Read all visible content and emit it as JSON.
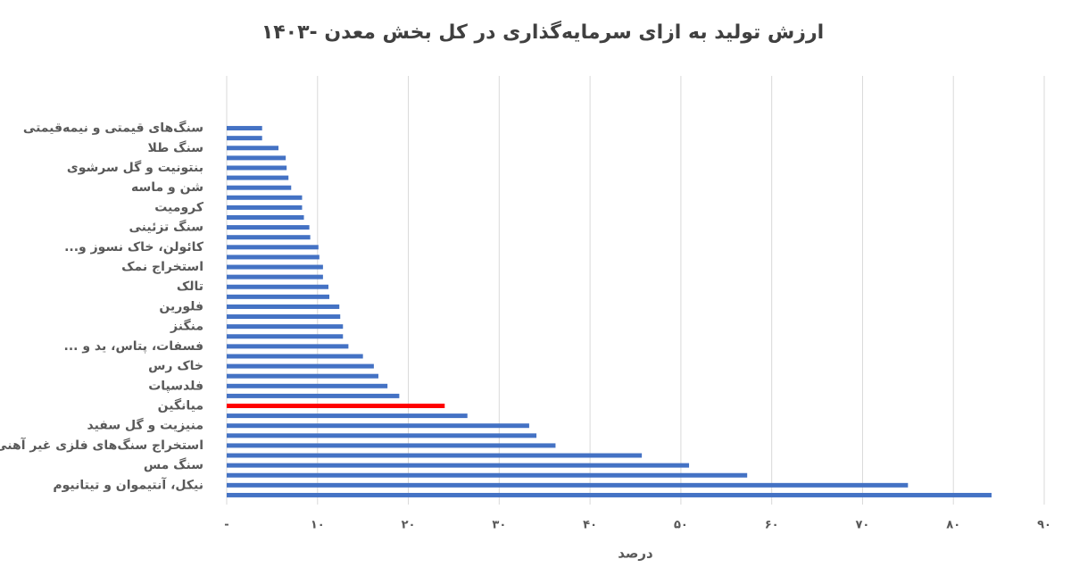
{
  "chart_data": {
    "type": "barh",
    "title": "ارزش تولید به ازای سرمایه‌گذاری در کل بخش معدن -۱۴۰۳",
    "xlabel": "درصد",
    "categories": [
      "سنگ‌های قیمتی و نیمه‌قیمتی",
      null,
      "سنگ طلا",
      null,
      "بنتونیت و گل سرشوی",
      null,
      "شن و ماسه",
      null,
      "کرومیت",
      null,
      "سنگ تزئینی",
      null,
      "کائولن، خاک نسوز و...",
      null,
      "استخراج نمک",
      null,
      "تالک",
      null,
      "فلورین",
      null,
      "منگنز",
      null,
      "فسفات، پتاس، ید و ...",
      null,
      "خاک رس",
      null,
      "فلدسپات",
      null,
      "میانگین",
      null,
      "منیزیت و گل سفید",
      null,
      "استخراج سنگ‌های فلزی غیر آهنی",
      null,
      "سنگ مس",
      null,
      "نیکل، آنتیموان و تیتانیوم",
      null
    ],
    "values": [
      3.9,
      3.9,
      5.7,
      6.5,
      6.6,
      6.8,
      7.1,
      8.3,
      8.3,
      8.5,
      9.1,
      9.2,
      10.1,
      10.2,
      10.6,
      10.6,
      11.2,
      11.3,
      12.4,
      12.5,
      12.8,
      12.8,
      13.4,
      15.0,
      16.2,
      16.7,
      17.7,
      19.0,
      24.0,
      26.5,
      33.3,
      34.1,
      36.2,
      45.7,
      50.9,
      57.3,
      75.0,
      84.2
    ],
    "color": "#4472c4",
    "highlight": {
      "category": "میانگین",
      "color": "#ff0000"
    },
    "xlim": [
      0,
      90
    ],
    "xticks": [
      {
        "value": 0,
        "label": "-"
      },
      {
        "value": 10,
        "label": "۱۰"
      },
      {
        "value": 20,
        "label": "۲۰"
      },
      {
        "value": 30,
        "label": "۳۰"
      },
      {
        "value": 40,
        "label": "۴۰"
      },
      {
        "value": 50,
        "label": "۵۰"
      },
      {
        "value": 60,
        "label": "۶۰"
      },
      {
        "value": 70,
        "label": "۷۰"
      },
      {
        "value": 80,
        "label": "۸۰"
      },
      {
        "value": 90,
        "label": "۹۰"
      }
    ],
    "grid": true
  }
}
